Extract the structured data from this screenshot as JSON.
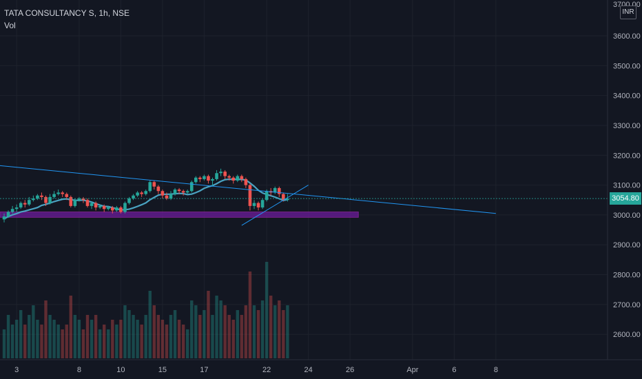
{
  "header": {
    "title": "TATA CONSULTANCY S, 1h, NSE",
    "indicator": "Vol"
  },
  "currency": "INR",
  "top_cut_label": "3700.00",
  "last_price": "3054.80",
  "colors": {
    "background": "#131722",
    "grid": "#1e222d",
    "up": "#26a69a",
    "down": "#ef5350",
    "trendline": "#2196f3",
    "ma": "#4aa3c2",
    "zone": "#6a1b9a",
    "zone_border": "#9c27b0",
    "price_tag": "#26a69a"
  },
  "chart_data": {
    "type": "candlestick",
    "y_range": [
      2515,
      3720
    ],
    "y_ticks": [
      "3600.00",
      "3500.00",
      "3400.00",
      "3300.00",
      "3200.00",
      "3100.00",
      "3000.00",
      "2900.00",
      "2800.00",
      "2700.00",
      "2600.00"
    ],
    "y_tick_values": [
      3600,
      3500,
      3400,
      3300,
      3200,
      3100,
      3000,
      2900,
      2800,
      2700,
      2600
    ],
    "x_labels": [
      "3",
      "8",
      "10",
      "15",
      "17",
      "22",
      "24",
      "26",
      "Apr",
      "6",
      "8"
    ],
    "x_label_bars": [
      3,
      18,
      28,
      38,
      48,
      63,
      73,
      83,
      98,
      108,
      118
    ],
    "bars_count": 124,
    "candles": [
      [
        2985,
        2995,
        2975,
        3005
      ],
      [
        2995,
        3010,
        2990,
        3015
      ],
      [
        3010,
        3020,
        3005,
        3030
      ],
      [
        3020,
        3025,
        3010,
        3035
      ],
      [
        3025,
        3040,
        3020,
        3045
      ],
      [
        3040,
        3035,
        3025,
        3050
      ],
      [
        3035,
        3050,
        3030,
        3060
      ],
      [
        3050,
        3055,
        3045,
        3065
      ],
      [
        3055,
        3065,
        3050,
        3070
      ],
      [
        3065,
        3060,
        3050,
        3075
      ],
      [
        3060,
        3040,
        3030,
        3065
      ],
      [
        3040,
        3060,
        3035,
        3070
      ],
      [
        3060,
        3070,
        3055,
        3080
      ],
      [
        3070,
        3075,
        3065,
        3085
      ],
      [
        3075,
        3070,
        3060,
        3080
      ],
      [
        3070,
        3060,
        3050,
        3075
      ],
      [
        3060,
        3030,
        3025,
        3065
      ],
      [
        3030,
        3050,
        3025,
        3055
      ],
      [
        3050,
        3055,
        3045,
        3060
      ],
      [
        3055,
        3050,
        3040,
        3060
      ],
      [
        3050,
        3030,
        3025,
        3055
      ],
      [
        3030,
        3040,
        3020,
        3045
      ],
      [
        3040,
        3025,
        3015,
        3045
      ],
      [
        3025,
        3030,
        3020,
        3035
      ],
      [
        3030,
        3020,
        3010,
        3035
      ],
      [
        3020,
        3025,
        3015,
        3030
      ],
      [
        3025,
        3015,
        3005,
        3030
      ],
      [
        3015,
        3025,
        3010,
        3030
      ],
      [
        3025,
        3010,
        3005,
        3030
      ],
      [
        3010,
        3040,
        3005,
        3045
      ],
      [
        3040,
        3055,
        3035,
        3060
      ],
      [
        3055,
        3065,
        3050,
        3070
      ],
      [
        3065,
        3075,
        3060,
        3080
      ],
      [
        3075,
        3070,
        3060,
        3080
      ],
      [
        3070,
        3080,
        3065,
        3085
      ],
      [
        3080,
        3110,
        3075,
        3115
      ],
      [
        3110,
        3095,
        3085,
        3115
      ],
      [
        3095,
        3080,
        3070,
        3100
      ],
      [
        3080,
        3065,
        3055,
        3085
      ],
      [
        3065,
        3055,
        3050,
        3075
      ],
      [
        3055,
        3070,
        3050,
        3080
      ],
      [
        3070,
        3085,
        3065,
        3090
      ],
      [
        3085,
        3080,
        3070,
        3090
      ],
      [
        3080,
        3075,
        3065,
        3085
      ],
      [
        3075,
        3080,
        3070,
        3085
      ],
      [
        3080,
        3110,
        3075,
        3115
      ],
      [
        3110,
        3125,
        3105,
        3130
      ],
      [
        3125,
        3120,
        3110,
        3130
      ],
      [
        3120,
        3130,
        3115,
        3135
      ],
      [
        3130,
        3115,
        3105,
        3135
      ],
      [
        3115,
        3120,
        3095,
        3125
      ],
      [
        3120,
        3140,
        3115,
        3150
      ],
      [
        3140,
        3145,
        3130,
        3155
      ],
      [
        3145,
        3130,
        3120,
        3150
      ],
      [
        3130,
        3125,
        3115,
        3135
      ],
      [
        3125,
        3115,
        3105,
        3130
      ],
      [
        3115,
        3130,
        3110,
        3135
      ],
      [
        3130,
        3120,
        3110,
        3135
      ],
      [
        3120,
        3100,
        3090,
        3125
      ],
      [
        3100,
        3030,
        3015,
        3105
      ],
      [
        3030,
        3040,
        3020,
        3050
      ],
      [
        3040,
        3025,
        3015,
        3045
      ],
      [
        3025,
        3050,
        3020,
        3055
      ],
      [
        3050,
        3080,
        3045,
        3085
      ],
      [
        3080,
        3075,
        3065,
        3090
      ],
      [
        3075,
        3090,
        3070,
        3095
      ],
      [
        3090,
        3070,
        3060,
        3095
      ],
      [
        3070,
        3050,
        3045,
        3075
      ],
      [
        3050,
        3055,
        3045,
        3070
      ]
    ],
    "volume_relative": [
      0.3,
      0.45,
      0.35,
      0.4,
      0.5,
      0.35,
      0.45,
      0.55,
      0.4,
      0.35,
      0.6,
      0.45,
      0.4,
      0.35,
      0.3,
      0.35,
      0.65,
      0.45,
      0.4,
      0.3,
      0.45,
      0.4,
      0.45,
      0.3,
      0.35,
      0.3,
      0.4,
      0.35,
      0.4,
      0.55,
      0.5,
      0.45,
      0.4,
      0.35,
      0.45,
      0.7,
      0.55,
      0.45,
      0.4,
      0.35,
      0.45,
      0.5,
      0.4,
      0.35,
      0.3,
      0.6,
      0.55,
      0.45,
      0.5,
      0.7,
      0.45,
      0.65,
      0.6,
      0.55,
      0.45,
      0.4,
      0.5,
      0.45,
      0.55,
      0.9,
      0.55,
      0.5,
      0.6,
      1.0,
      0.65,
      0.55,
      0.6,
      0.5,
      0.55
    ],
    "trendline": {
      "from": [
        0,
        3165
      ],
      "to": [
        118,
        3005
      ]
    },
    "support_zone": {
      "bars": [
        0,
        85
      ],
      "top": 3010,
      "bottom": 2992
    },
    "rising_line": {
      "from": [
        57,
        2965
      ],
      "to": [
        73,
        3100
      ]
    }
  }
}
